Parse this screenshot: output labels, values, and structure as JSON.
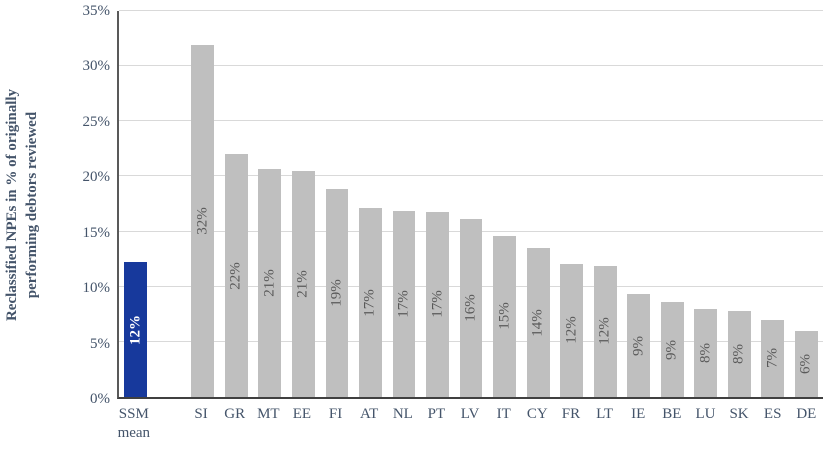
{
  "chart_data": {
    "type": "bar",
    "title": "",
    "ylabel": "Reclassified NPEs in % of originally performing debtors reviewed",
    "ylabel_lines": [
      "Reclassified NPEs in % of originally",
      "performing debtors reviewed"
    ],
    "xlabel": "",
    "ylim": [
      0,
      35
    ],
    "grid": true,
    "legend": "none",
    "yticks": [
      {
        "value": 0,
        "label": "0%"
      },
      {
        "value": 5,
        "label": "5%"
      },
      {
        "value": 10,
        "label": "10%"
      },
      {
        "value": 15,
        "label": "15%"
      },
      {
        "value": 20,
        "label": "20%"
      },
      {
        "value": 25,
        "label": "25%"
      },
      {
        "value": 30,
        "label": "30%"
      },
      {
        "value": 35,
        "label": "35%"
      }
    ],
    "categories": [
      "SSM mean",
      "SI",
      "GR",
      "MT",
      "EE",
      "FI",
      "AT",
      "NL",
      "PT",
      "LV",
      "IT",
      "CY",
      "FR",
      "LT",
      "IE",
      "BE",
      "LU",
      "SK",
      "ES",
      "DE"
    ],
    "values": [
      12.2,
      31.9,
      22.0,
      20.7,
      20.5,
      18.9,
      17.1,
      16.9,
      16.8,
      16.1,
      14.6,
      13.5,
      12.1,
      11.9,
      9.3,
      8.6,
      8.0,
      7.8,
      7.0,
      6.0
    ],
    "bar_labels": [
      "12%",
      "32%",
      "22%",
      "21%",
      "21%",
      "19%",
      "17%",
      "17%",
      "17%",
      "16%",
      "15%",
      "14%",
      "12%",
      "12%",
      "9%",
      "9%",
      "8%",
      "8%",
      "7%",
      "6%"
    ],
    "spacer_after_index": 0,
    "highlight": {
      "index": 0,
      "bar_color": "#17399C",
      "label_color": "#FFFFFF",
      "label_bold": true
    },
    "bar_color": "#BFBFBF",
    "bar_label_color": "#595959"
  },
  "style": {
    "grid_color": "#D9D9D9",
    "axis_text_color": "#44546A"
  }
}
